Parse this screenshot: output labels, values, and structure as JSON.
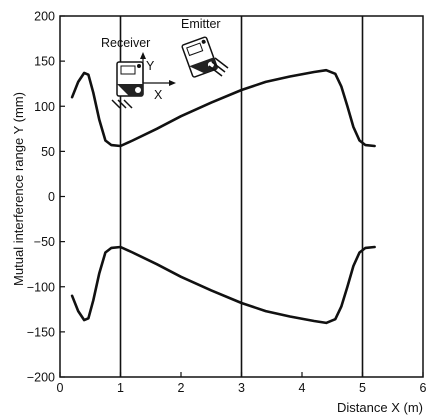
{
  "chart_data": {
    "type": "line",
    "xlabel": "Distance X (m)",
    "ylabel": "Mutual interference range Y (mm)",
    "xlim": [
      0,
      6
    ],
    "ylim": [
      -200,
      200
    ],
    "xticks": [
      0,
      1,
      2,
      3,
      4,
      5,
      6
    ],
    "yticks": [
      200,
      150,
      100,
      50,
      0,
      -50,
      -100,
      -150,
      -200
    ],
    "vertical_reference_lines": [
      1,
      3,
      5
    ],
    "series": [
      {
        "values": [
          [
            0.2,
            110
          ],
          [
            0.3,
            127
          ],
          [
            0.4,
            137
          ],
          [
            0.47,
            135
          ],
          [
            0.55,
            115
          ],
          [
            0.65,
            85
          ],
          [
            0.75,
            62
          ],
          [
            0.85,
            57
          ],
          [
            1.0,
            56
          ],
          [
            1.2,
            62
          ],
          [
            1.6,
            75
          ],
          [
            2.0,
            89
          ],
          [
            2.5,
            104
          ],
          [
            3.0,
            118
          ],
          [
            3.4,
            127
          ],
          [
            3.8,
            133
          ],
          [
            4.2,
            138
          ],
          [
            4.4,
            140
          ],
          [
            4.55,
            136
          ],
          [
            4.65,
            122
          ],
          [
            4.75,
            100
          ],
          [
            4.85,
            77
          ],
          [
            4.95,
            62
          ],
          [
            5.05,
            57
          ],
          [
            5.2,
            56
          ]
        ]
      },
      {
        "values": [
          [
            0.2,
            -110
          ],
          [
            0.3,
            -127
          ],
          [
            0.4,
            -137
          ],
          [
            0.47,
            -135
          ],
          [
            0.55,
            -115
          ],
          [
            0.65,
            -85
          ],
          [
            0.75,
            -62
          ],
          [
            0.85,
            -57
          ],
          [
            1.0,
            -56
          ],
          [
            1.2,
            -62
          ],
          [
            1.6,
            -75
          ],
          [
            2.0,
            -89
          ],
          [
            2.5,
            -104
          ],
          [
            3.0,
            -118
          ],
          [
            3.4,
            -127
          ],
          [
            3.8,
            -133
          ],
          [
            4.2,
            -138
          ],
          [
            4.4,
            -140
          ],
          [
            4.55,
            -136
          ],
          [
            4.65,
            -122
          ],
          [
            4.75,
            -100
          ],
          [
            4.85,
            -77
          ],
          [
            4.95,
            -62
          ],
          [
            5.05,
            -57
          ],
          [
            5.2,
            -56
          ]
        ]
      }
    ],
    "inset": {
      "receiver_label": "Receiver",
      "emitter_label": "Emitter",
      "y_arrow_label": "Y",
      "x_arrow_label": "X"
    }
  }
}
